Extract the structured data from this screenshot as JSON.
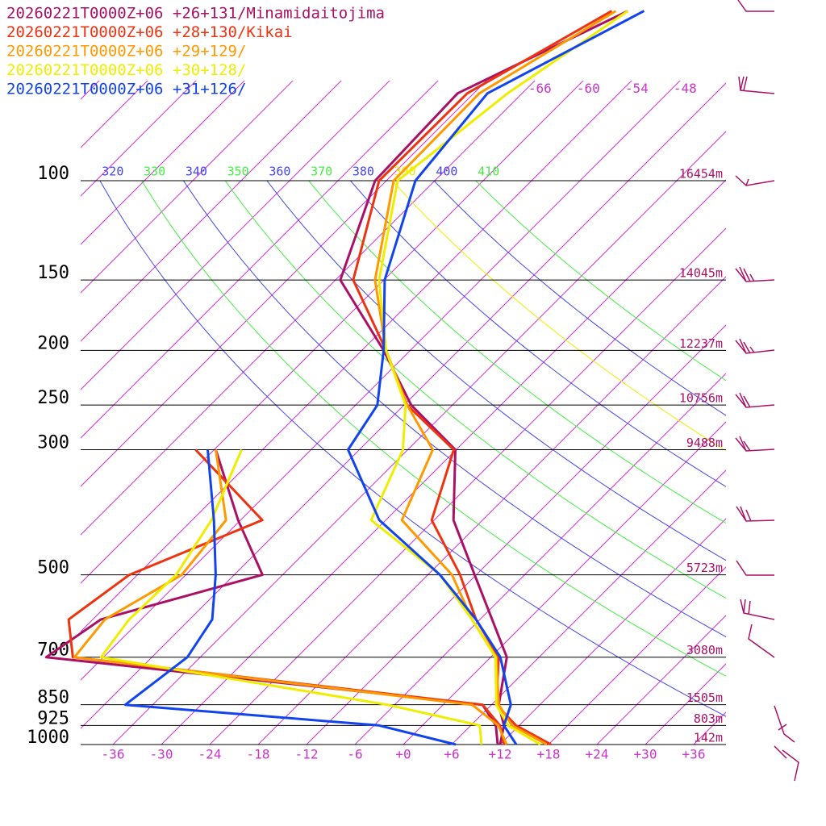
{
  "chart_data": {
    "type": "skewt",
    "series": [
      {
        "name": "20260221T0000Z+06 +26+131/Minamidaitojima",
        "color": "#aa1166",
        "temperature": [
          12.0,
          10.1,
          6.9,
          2.0,
          -4.5,
          -12.2,
          -21.6,
          -30.1,
          -41.1,
          -51.3,
          -65.4,
          -73.4,
          -74.0,
          -63.1
        ],
        "dewpoint": [
          11.7,
          9.1,
          4.9,
          -55.1,
          -53.0,
          -38.5,
          -48.3,
          -59.8,
          null,
          null,
          null,
          null,
          null,
          null
        ]
      },
      {
        "name": "20260221T0000Z+06 +28+130/Kikai",
        "color": "#ee3311",
        "temperature": [
          18.3,
          11.6,
          6.6,
          1.0,
          -6.5,
          -14.0,
          -24.3,
          -30.3,
          -41.6,
          -51.0,
          -63.8,
          -72.9,
          -72.8,
          -65.1
        ],
        "dewpoint": [
          12.5,
          9.6,
          4.9,
          -51.8,
          -57.0,
          -55.0,
          -45.3,
          -62.3,
          null,
          null,
          null,
          null,
          null,
          null
        ]
      },
      {
        "name": "20260221T0000Z+06 +29+129/",
        "color": "#ff9900",
        "temperature": [
          17.8,
          11.1,
          6.9,
          0.7,
          -7.0,
          -15.0,
          -28.0,
          -32.9,
          -41.6,
          -51.0,
          -61.1,
          -71.1,
          -71.3,
          -64.6
        ],
        "dewpoint": [
          12.8,
          9.4,
          3.6,
          -51.6,
          -52.5,
          -48.5,
          -49.8,
          -59.8,
          null,
          null,
          null,
          null,
          null,
          null
        ]
      },
      {
        "name": "20260221T0000Z+06 +30+128/",
        "color": "#eeee00",
        "temperature": [
          17.0,
          10.6,
          6.6,
          0.6,
          -7.0,
          -16.5,
          -31.8,
          -36.6,
          -41.8,
          -51.0,
          -60.6,
          -70.6,
          -67.8,
          -63.1
        ],
        "dewpoint": [
          9.7,
          7.1,
          -6.9,
          -48.3,
          -49.5,
          -49.2,
          -51.6,
          -56.6,
          null,
          null,
          null,
          null,
          null,
          null
        ]
      },
      {
        "name": "20260221T0000Z+06 +31+126/",
        "color": "#1144ee",
        "temperature": [
          14.0,
          10.1,
          8.4,
          1.2,
          -6.5,
          -16.5,
          -30.8,
          -43.4,
          -45.3,
          -51.3,
          -59.9,
          -68.4,
          -70.3,
          -61.1
        ],
        "dewpoint": [
          6.5,
          -5.4,
          -39.4,
          -37.6,
          -39.2,
          -44.3,
          -51.3,
          -60.8,
          null,
          null,
          null,
          null,
          null,
          null
        ]
      }
    ],
    "pressure_levels": [
      1000,
      925,
      850,
      700,
      600,
      500,
      400,
      300,
      250,
      200,
      150,
      100,
      70,
      50
    ],
    "ylim": [
      1000,
      100
    ],
    "log_y": true,
    "yticks": [
      100,
      150,
      200,
      250,
      300,
      500,
      700,
      850,
      925,
      1000
    ],
    "height_labels": [
      "16454m",
      "14045m",
      "12237m",
      "10756m",
      "9488m",
      "5723m",
      "3080m",
      "1505m",
      "803m",
      "142m"
    ],
    "xlim": [
      -40,
      40
    ],
    "xticks": [
      -36,
      -30,
      -24,
      -18,
      -12,
      -6,
      {
        "value": 0,
        "label": "+0"
      },
      {
        "value": 6,
        "label": "+6"
      },
      {
        "value": 12,
        "label": "+12"
      },
      {
        "value": 18,
        "label": "+18"
      },
      {
        "value": 24,
        "label": "+24"
      },
      {
        "value": 30,
        "label": "+30"
      },
      {
        "value": 36,
        "label": "+36"
      }
    ],
    "top_isotherms": [
      -66,
      -60,
      -54,
      -48
    ],
    "theta_labels": [
      320,
      330,
      340,
      350,
      360,
      370,
      380,
      390,
      400,
      410
    ],
    "theta_colors": [
      "#4444ee",
      "#44ee44",
      "#4444ee",
      "#44ee44",
      "#4444ee",
      "#44ee44",
      "#4444ee",
      "#eeee00",
      "#4444ee",
      "#44ee44"
    ],
    "isotherm_color": "#cc33cc"
  }
}
